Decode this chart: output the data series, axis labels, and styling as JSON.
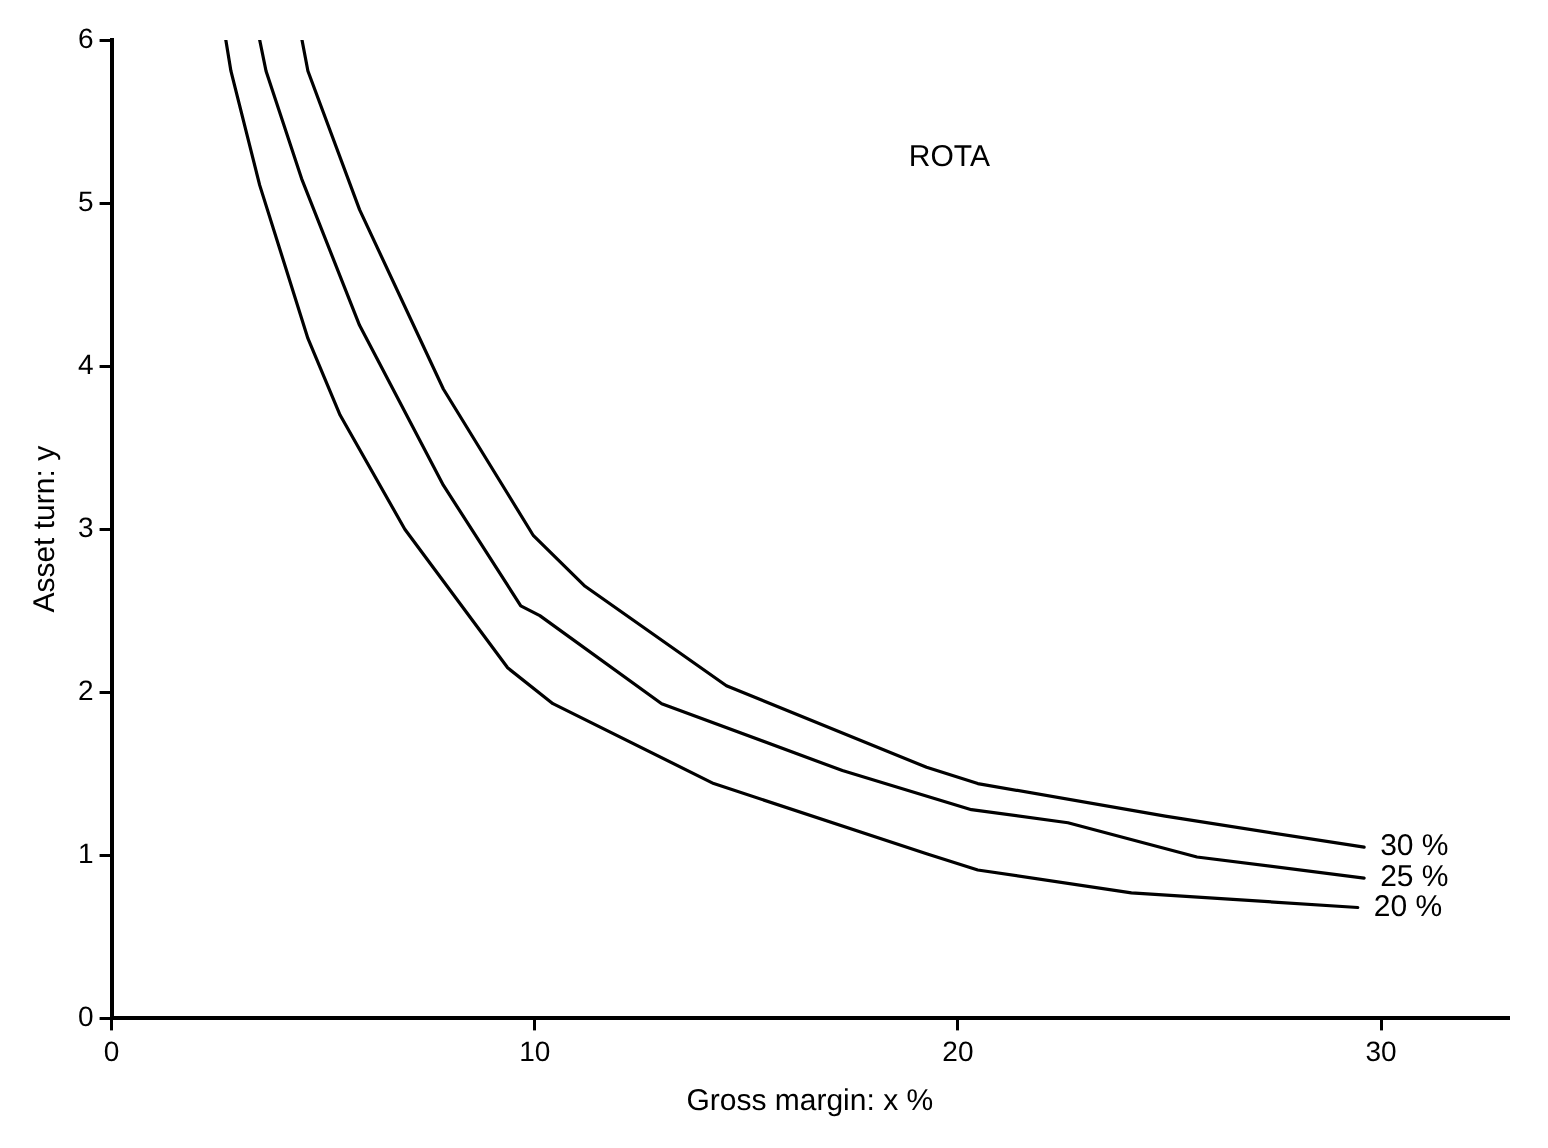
{
  "chart_data": {
    "type": "line",
    "title": "ROTA",
    "xlabel": "Gross margin: x %",
    "ylabel": "Asset turn: y",
    "xlim": [
      0,
      33
    ],
    "xticks": [
      0,
      10,
      20,
      30
    ],
    "ylim": [
      0,
      6
    ],
    "yticks": [
      0,
      1,
      2,
      3,
      4,
      5,
      6
    ],
    "grid": false,
    "legend": false,
    "marker": "none",
    "line_style": "solid",
    "series": [
      {
        "name": "30 %",
        "color": "#000000",
        "x": [
          4.5,
          4.64,
          5.86,
          7.84,
          9.97,
          11.19,
          14.53,
          19.26,
          20.47,
          24.9,
          29.6
        ],
        "values": [
          6,
          5.81,
          4.96,
          3.86,
          2.96,
          2.65,
          2.04,
          1.54,
          1.44,
          1.24,
          1.05
        ]
      },
      {
        "name": "25 %",
        "color": "#000000",
        "x": [
          3.5,
          3.65,
          4.49,
          5.86,
          7.84,
          9.67,
          10.12,
          13.0,
          17.27,
          20.32,
          22.6,
          25.65,
          29.6
        ],
        "values": [
          6,
          5.81,
          5.15,
          4.25,
          3.27,
          2.53,
          2.47,
          1.93,
          1.52,
          1.28,
          1.2,
          0.99,
          0.86
        ]
      },
      {
        "name": "20 %",
        "color": "#000000",
        "x": [
          2.7,
          2.82,
          3.5,
          4.64,
          5.4,
          6.93,
          9.36,
          10.43,
          14.23,
          19.26,
          20.47,
          24.1,
          29.45
        ],
        "values": [
          6,
          5.81,
          5.11,
          4.17,
          3.7,
          3.0,
          2.15,
          1.93,
          1.44,
          1.01,
          0.91,
          0.77,
          0.68
        ]
      }
    ]
  }
}
